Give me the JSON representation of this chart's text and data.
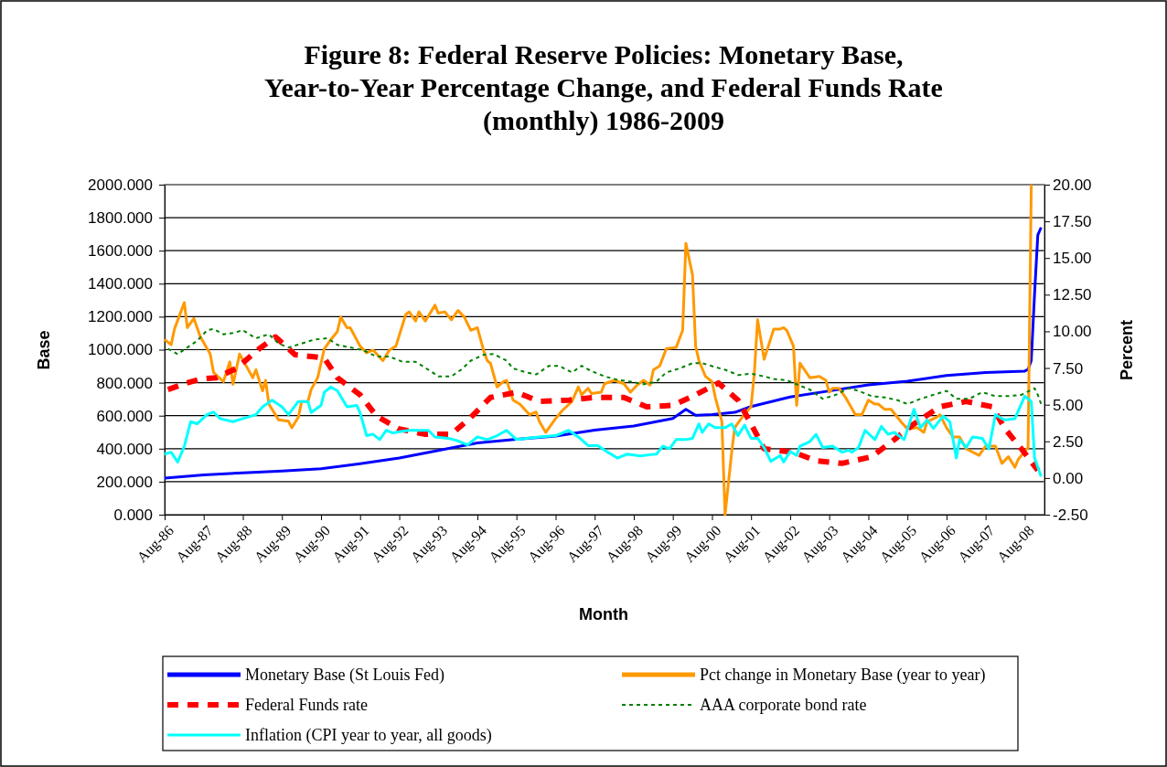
{
  "chart_data": {
    "type": "line",
    "title": "Figure 8: Federal Reserve Policies: Monetary Base,\nYear-to-Year Percentage Change, and Federal Funds Rate\n(monthly) 1986-2009",
    "xlabel": "Month",
    "ylabel": "Base",
    "y2label": "Percent",
    "xlim": [
      "1986-08",
      "2009-02"
    ],
    "xticks": [
      {
        "value": "1986-08",
        "label": "Aug-86"
      },
      {
        "value": "1987-08",
        "label": "Aug-87"
      },
      {
        "value": "1988-08",
        "label": "Aug-88"
      },
      {
        "value": "1989-08",
        "label": "Aug-89"
      },
      {
        "value": "1990-08",
        "label": "Aug-90"
      },
      {
        "value": "1991-08",
        "label": "Aug-91"
      },
      {
        "value": "1992-08",
        "label": "Aug-92"
      },
      {
        "value": "1993-08",
        "label": "Aug-93"
      },
      {
        "value": "1994-08",
        "label": "Aug-94"
      },
      {
        "value": "1995-08",
        "label": "Aug-95"
      },
      {
        "value": "1996-08",
        "label": "Aug-96"
      },
      {
        "value": "1997-08",
        "label": "Aug-97"
      },
      {
        "value": "1998-08",
        "label": "Aug-98"
      },
      {
        "value": "1999-08",
        "label": "Aug-99"
      },
      {
        "value": "2000-08",
        "label": "Aug-00"
      },
      {
        "value": "2001-08",
        "label": "Aug-01"
      },
      {
        "value": "2002-08",
        "label": "Aug-02"
      },
      {
        "value": "2003-08",
        "label": "Aug-03"
      },
      {
        "value": "2004-08",
        "label": "Aug-04"
      },
      {
        "value": "2005-08",
        "label": "Aug-05"
      },
      {
        "value": "2006-08",
        "label": "Aug-06"
      },
      {
        "value": "2007-08",
        "label": "Aug-07"
      },
      {
        "value": "2008-08",
        "label": "Aug-08"
      }
    ],
    "ylim": [
      0,
      2000
    ],
    "yticks": [
      {
        "value": 0,
        "label": "0.000"
      },
      {
        "value": 200,
        "label": "200.000"
      },
      {
        "value": 400,
        "label": "400.000"
      },
      {
        "value": 600,
        "label": "600.000"
      },
      {
        "value": 800,
        "label": "800.000"
      },
      {
        "value": 1000,
        "label": "1000.000"
      },
      {
        "value": 1200,
        "label": "1200.000"
      },
      {
        "value": 1400,
        "label": "1400.000"
      },
      {
        "value": 1600,
        "label": "1600.000"
      },
      {
        "value": 1800,
        "label": "1800.000"
      },
      {
        "value": 2000,
        "label": "2000.000"
      }
    ],
    "y2lim": [
      -2.5,
      20
    ],
    "y2ticks": [
      {
        "value": -2.5,
        "label": "-2.50"
      },
      {
        "value": 0,
        "label": "0.00"
      },
      {
        "value": 2.5,
        "label": "2.50"
      },
      {
        "value": 5,
        "label": "5.00"
      },
      {
        "value": 7.5,
        "label": "7.50"
      },
      {
        "value": 10,
        "label": "10.00"
      },
      {
        "value": 12.5,
        "label": "12.50"
      },
      {
        "value": 15,
        "label": "15.00"
      },
      {
        "value": 17.5,
        "label": "17.50"
      },
      {
        "value": 20,
        "label": "20.00"
      }
    ],
    "grid": "y",
    "legend": "bottom",
    "marker": "none",
    "series": [
      {
        "name": "Monetary Base (St Louis Fed)",
        "color": "#0000ff",
        "line_style": "solid",
        "x": [
          "1986-08",
          "1987-08",
          "1988-08",
          "1989-08",
          "1990-08",
          "1991-08",
          "1992-08",
          "1993-08",
          "1994-08",
          "1995-08",
          "1996-08",
          "1997-08",
          "1998-08",
          "1999-08",
          "1999-12",
          "2000-03",
          "2000-08",
          "2001-03",
          "2001-08",
          "2002-08",
          "2003-08",
          "2004-08",
          "2005-08",
          "2006-08",
          "2007-08",
          "2008-08",
          "2008-09",
          "2008-10",
          "2008-11",
          "2008-12",
          "2009-01"
        ],
        "values": [
          222,
          241,
          254,
          265,
          278,
          309,
          343,
          389,
          435,
          457,
          476,
          513,
          537,
          583,
          639,
          602,
          607,
          620,
          655,
          713,
          750,
          787,
          809,
          843,
          861,
          870,
          880,
          935,
          1343,
          1695,
          1741
        ]
      },
      {
        "name": "Pct change in Monetary Base (year to year)",
        "color": "#ff9900",
        "line_style": "solid",
        "axis": "y2",
        "x": [
          "1986-08",
          "1986-10",
          "1986-11",
          "1987-02",
          "1987-03",
          "1987-05",
          "1987-07",
          "1987-10",
          "1987-11",
          "1988-02",
          "1988-04",
          "1988-05",
          "1988-07",
          "1988-09",
          "1988-11",
          "1988-12",
          "1989-02",
          "1989-03",
          "1989-04",
          "1989-07",
          "1989-10",
          "1989-11",
          "1990-01",
          "1990-02",
          "1990-04",
          "1990-05",
          "1990-07",
          "1990-09",
          "1990-11",
          "1991-01",
          "1991-02",
          "1991-04",
          "1991-05",
          "1991-08",
          "1991-10",
          "1991-12",
          "1992-03",
          "1992-05",
          "1992-07",
          "1992-10",
          "1992-11",
          "1993-01",
          "1993-02",
          "1993-04",
          "1993-07",
          "1993-08",
          "1993-10",
          "1993-12",
          "1994-02",
          "1994-04",
          "1994-06",
          "1994-08",
          "1994-10",
          "1994-11",
          "1994-12",
          "1995-02",
          "1995-04",
          "1995-05",
          "1995-07",
          "1995-09",
          "1995-12",
          "1996-02",
          "1996-03",
          "1996-05",
          "1996-08",
          "1996-10",
          "1997-01",
          "1997-03",
          "1997-04",
          "1997-06",
          "1997-07",
          "1997-10",
          "1997-11",
          "1998-02",
          "1998-05",
          "1998-07",
          "1998-09",
          "1998-11",
          "1999-01",
          "1999-02",
          "1999-04",
          "1999-06",
          "1999-09",
          "1999-11",
          "1999-12",
          "2000-02",
          "2000-03",
          "2000-04",
          "2000-06",
          "2000-08",
          "2000-09",
          "2000-11",
          "2000-12",
          "2001-02",
          "2001-03",
          "2001-05",
          "2001-08",
          "2001-09",
          "2001-10",
          "2001-12",
          "2002-03",
          "2002-05",
          "2002-06",
          "2002-07",
          "2002-09",
          "2002-10",
          "2002-11",
          "2003-02",
          "2003-05",
          "2003-07",
          "2003-08",
          "2003-09",
          "2003-11",
          "2004-01",
          "2004-04",
          "2004-06",
          "2004-08",
          "2004-10",
          "2004-11",
          "2005-01",
          "2005-03",
          "2005-06",
          "2005-08",
          "2005-11",
          "2006-01",
          "2006-02",
          "2006-05",
          "2006-06",
          "2006-08",
          "2006-10",
          "2006-12",
          "2007-02",
          "2007-06",
          "2007-08",
          "2007-11",
          "2008-01",
          "2008-03",
          "2008-05",
          "2008-06",
          "2008-09",
          "2008-10"
        ],
        "values": [
          9.44,
          9.08,
          10.16,
          11.96,
          10.25,
          10.88,
          9.62,
          8.45,
          7.2,
          6.57,
          7.92,
          6.39,
          8.45,
          7.65,
          6.84,
          7.38,
          5.94,
          6.66,
          5.04,
          3.96,
          3.87,
          3.43,
          4.14,
          5.22,
          5.22,
          6.03,
          6.84,
          8.81,
          9.44,
          9.98,
          10.97,
          10.25,
          10.25,
          8.99,
          8.54,
          8.72,
          8.0,
          8.72,
          8.99,
          11.15,
          11.33,
          10.7,
          11.33,
          10.7,
          11.78,
          11.24,
          11.33,
          10.79,
          11.42,
          10.97,
          10.07,
          10.25,
          8.63,
          8.0,
          7.83,
          6.21,
          6.57,
          6.66,
          5.31,
          5.04,
          4.32,
          4.5,
          3.87,
          3.11,
          4.05,
          4.59,
          5.22,
          6.21,
          5.67,
          6.12,
          5.76,
          5.85,
          6.43,
          6.66,
          6.43,
          5.85,
          6.34,
          6.66,
          6.34,
          7.38,
          7.65,
          8.81,
          8.9,
          10.07,
          16.0,
          13.84,
          8.99,
          8.0,
          6.93,
          6.57,
          5.49,
          3.87,
          -2.5,
          1.76,
          3.43,
          4.05,
          4.86,
          7.2,
          10.79,
          8.09,
          10.16,
          10.16,
          10.25,
          10.07,
          8.99,
          4.95,
          7.83,
          6.84,
          6.93,
          6.66,
          5.85,
          6.12,
          6.12,
          5.49,
          4.32,
          4.32,
          5.31,
          5.04,
          5.04,
          4.68,
          4.68,
          3.84,
          3.34,
          3.43,
          3.11,
          3.84,
          4.14,
          4.32,
          3.43,
          2.8,
          2.8,
          1.99,
          1.54,
          2.17,
          2.17,
          1.0,
          1.45,
          0.73,
          1.27,
          2.08,
          20
        ]
      },
      {
        "name": "Federal Funds rate",
        "color": "#ff0000",
        "line_style": "dashed",
        "axis": "y2",
        "x": [
          "1986-09",
          "1987-02",
          "1987-07",
          "1987-12",
          "1988-06",
          "1989-01",
          "1989-06",
          "1989-12",
          "1990-09",
          "1991-01",
          "1991-08",
          "1992-01",
          "1992-08",
          "1993-04",
          "1993-12",
          "1994-06",
          "1994-12",
          "1995-08",
          "1996-03",
          "1996-12",
          "1997-08",
          "1998-05",
          "1998-12",
          "1999-08",
          "2000-03",
          "2000-10",
          "2001-04",
          "2001-08",
          "2001-12",
          "2002-09",
          "2003-04",
          "2003-12",
          "2004-09",
          "2005-04",
          "2005-10",
          "2006-06",
          "2007-02",
          "2007-10",
          "2008-02",
          "2008-07",
          "2008-12"
        ],
        "values": [
          6.03,
          6.43,
          6.75,
          6.84,
          7.47,
          8.81,
          9.62,
          8.41,
          8.18,
          6.84,
          5.67,
          4.23,
          3.34,
          2.98,
          2.98,
          4.14,
          5.49,
          5.85,
          5.22,
          5.31,
          5.49,
          5.49,
          4.86,
          4.95,
          5.67,
          6.48,
          5.31,
          3.69,
          1.99,
          1.76,
          1.18,
          1.0,
          1.45,
          2.62,
          3.69,
          4.86,
          5.22,
          4.86,
          3.34,
          1.99,
          0.52
        ]
      },
      {
        "name": "AAA corporate bond rate",
        "color": "#008000",
        "line_style": "dotted",
        "axis": "y2",
        "x": [
          "1986-09",
          "1986-12",
          "1987-06",
          "1987-09",
          "1987-11",
          "1988-02",
          "1988-05",
          "1988-08",
          "1988-12",
          "1989-04",
          "1989-07",
          "1989-10",
          "1990-02",
          "1990-06",
          "1990-10",
          "1991-01",
          "1991-05",
          "1991-09",
          "1992-01",
          "1992-05",
          "1992-09",
          "1993-01",
          "1993-05",
          "1993-08",
          "1993-12",
          "1994-03",
          "1994-06",
          "1994-10",
          "1995-01",
          "1995-05",
          "1995-07",
          "1995-11",
          "1996-02",
          "1996-06",
          "1996-09",
          "1997-01",
          "1997-04",
          "1997-07",
          "1997-11",
          "1998-03",
          "1998-07",
          "1998-11",
          "1999-03",
          "1999-06",
          "1999-10",
          "2000-02",
          "2000-05",
          "2000-09",
          "2000-12",
          "2001-04",
          "2001-08",
          "2001-12",
          "2002-03",
          "2002-07",
          "2002-11",
          "2003-02",
          "2003-06",
          "2003-10",
          "2004-02",
          "2004-05",
          "2004-09",
          "2005-01",
          "2005-05",
          "2005-08",
          "2005-12",
          "2006-04",
          "2006-08",
          "2006-11",
          "2007-03",
          "2007-07",
          "2007-11",
          "2008-03",
          "2008-07",
          "2008-11",
          "2008-12",
          "2009-01"
        ],
        "values": [
          8.81,
          8.45,
          9.35,
          10.07,
          10.16,
          9.8,
          9.89,
          10.07,
          9.53,
          9.8,
          9.17,
          8.9,
          9.17,
          9.44,
          9.53,
          9.08,
          8.9,
          8.72,
          8.28,
          8.28,
          7.92,
          7.92,
          7.38,
          6.93,
          6.93,
          7.38,
          8.0,
          8.41,
          8.45,
          8.0,
          7.47,
          7.2,
          7.06,
          7.65,
          7.65,
          7.2,
          7.65,
          7.29,
          6.93,
          6.7,
          6.57,
          6.39,
          6.57,
          7.2,
          7.47,
          7.83,
          7.83,
          7.56,
          7.38,
          7.02,
          7.11,
          6.93,
          6.75,
          6.66,
          6.3,
          6.03,
          5.4,
          5.67,
          6.12,
          5.94,
          5.58,
          5.49,
          5.31,
          5.04,
          5.4,
          5.67,
          5.94,
          5.4,
          5.4,
          5.85,
          5.58,
          5.58,
          5.67,
          6.12,
          5.67,
          5.04
        ]
      },
      {
        "name": "Inflation (CPI year to year, all goods)",
        "color": "#00ffff",
        "line_style": "solid",
        "axis": "y2",
        "x": [
          "1986-08",
          "1986-10",
          "1986-12",
          "1987-02",
          "1987-04",
          "1987-06",
          "1987-09",
          "1987-11",
          "1988-01",
          "1988-05",
          "1988-08",
          "1988-12",
          "1989-02",
          "1989-05",
          "1989-08",
          "1989-10",
          "1990-01",
          "1990-04",
          "1990-05",
          "1990-08",
          "1990-09",
          "1990-11",
          "1991-01",
          "1991-04",
          "1991-07",
          "1991-08",
          "1991-10",
          "1991-12",
          "1992-02",
          "1992-04",
          "1992-06",
          "1992-08",
          "1992-11",
          "1993-03",
          "1993-05",
          "1993-07",
          "1993-11",
          "1994-02",
          "1994-05",
          "1994-08",
          "1994-11",
          "1995-02",
          "1995-05",
          "1995-08",
          "1995-11",
          "1996-03",
          "1996-08",
          "1996-12",
          "1997-03",
          "1997-06",
          "1997-09",
          "1997-12",
          "1998-03",
          "1998-06",
          "1998-10",
          "1999-01",
          "1999-03",
          "1999-05",
          "1999-07",
          "1999-09",
          "1999-12",
          "2000-02",
          "2000-04",
          "2000-05",
          "2000-07",
          "2000-09",
          "2000-12",
          "2001-02",
          "2001-04",
          "2001-06",
          "2001-08",
          "2001-10",
          "2001-12",
          "2002-02",
          "2002-05",
          "2002-06",
          "2002-08",
          "2002-10",
          "2002-11",
          "2003-02",
          "2003-04",
          "2003-06",
          "2003-09",
          "2003-12",
          "2004-02",
          "2004-03",
          "2004-05",
          "2004-07",
          "2004-10",
          "2004-12",
          "2005-02",
          "2005-04",
          "2005-07",
          "2005-10",
          "2005-12",
          "2006-02",
          "2006-04",
          "2006-07",
          "2006-09",
          "2006-11",
          "2006-12",
          "2007-02",
          "2007-04",
          "2007-07",
          "2007-09",
          "2007-11",
          "2008-01",
          "2008-02",
          "2008-05",
          "2008-08",
          "2008-10",
          "2008-11",
          "2009-01"
        ],
        "values": [
          1.63,
          1.76,
          1.09,
          2.17,
          3.84,
          3.7,
          4.32,
          4.5,
          4.05,
          3.84,
          4.05,
          4.32,
          4.86,
          5.31,
          4.86,
          4.32,
          5.22,
          5.22,
          4.46,
          4.95,
          5.85,
          6.21,
          5.94,
          4.86,
          4.95,
          4.46,
          2.89,
          2.98,
          2.62,
          3.25,
          3.07,
          3.16,
          3.25,
          3.25,
          3.25,
          2.8,
          2.71,
          2.53,
          2.26,
          2.8,
          2.62,
          2.89,
          3.25,
          2.62,
          2.71,
          2.8,
          2.89,
          3.25,
          2.8,
          2.21,
          2.21,
          1.76,
          1.36,
          1.63,
          1.51,
          1.59,
          1.63,
          2.17,
          1.99,
          2.62,
          2.62,
          2.71,
          3.69,
          3.11,
          3.69,
          3.43,
          3.43,
          3.69,
          2.89,
          3.6,
          2.71,
          2.71,
          2.08,
          1.14,
          1.54,
          1.09,
          1.81,
          1.54,
          2.17,
          2.48,
          2.98,
          2.08,
          2.17,
          1.76,
          1.9,
          1.76,
          2.08,
          3.25,
          2.62,
          3.52,
          2.98,
          3.11,
          2.62,
          4.68,
          3.43,
          3.96,
          3.38,
          4.23,
          3.84,
          1.36,
          2.62,
          2.08,
          2.8,
          2.71,
          1.99,
          4.32,
          4.05,
          3.96,
          4.05,
          5.58,
          5.22,
          1.36,
          0.1
        ]
      }
    ]
  }
}
